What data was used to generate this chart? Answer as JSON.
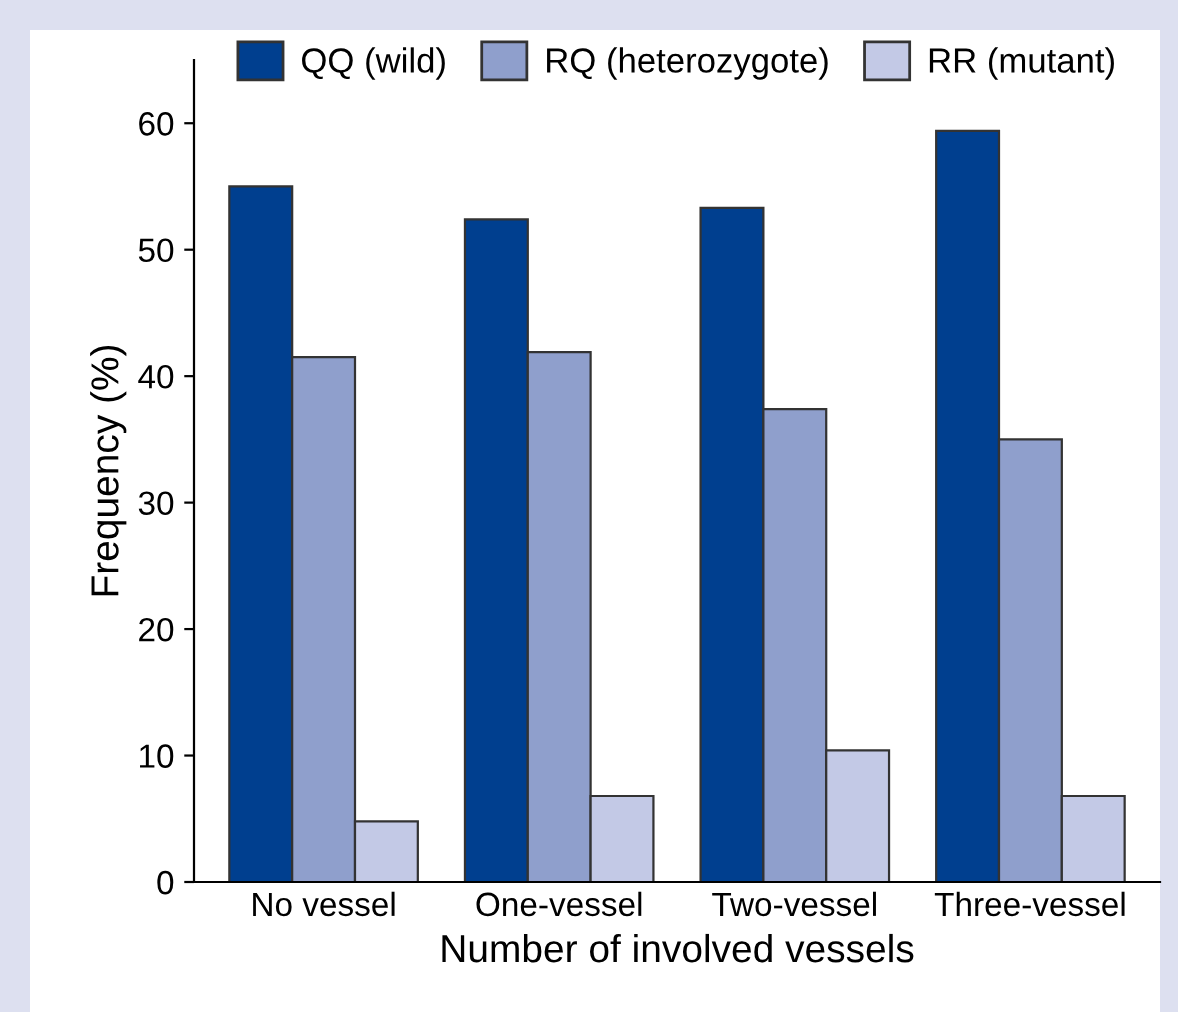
{
  "chart_data": {
    "type": "bar",
    "xlabel": "Number of involved vessels",
    "ylabel": "Frequency (%)",
    "categories": [
      "No vessel",
      "One-vessel",
      "Two-vessel",
      "Three-vessel"
    ],
    "series": [
      {
        "name": "QQ (wild)",
        "color": "#003f8f",
        "values": [
          55,
          52.4,
          53.3,
          59.4
        ]
      },
      {
        "name": "RQ (heterozygote)",
        "color": "#8f9fcc",
        "values": [
          41.5,
          41.9,
          37.4,
          35.0
        ]
      },
      {
        "name": "RR (mutant)",
        "color": "#c3c9e6",
        "values": [
          4.8,
          6.8,
          10.4,
          6.8
        ]
      }
    ],
    "ylim": [
      0,
      65
    ],
    "yticks": [
      0,
      10,
      20,
      30,
      40,
      50,
      60
    ],
    "grid": false,
    "legend": "top"
  }
}
